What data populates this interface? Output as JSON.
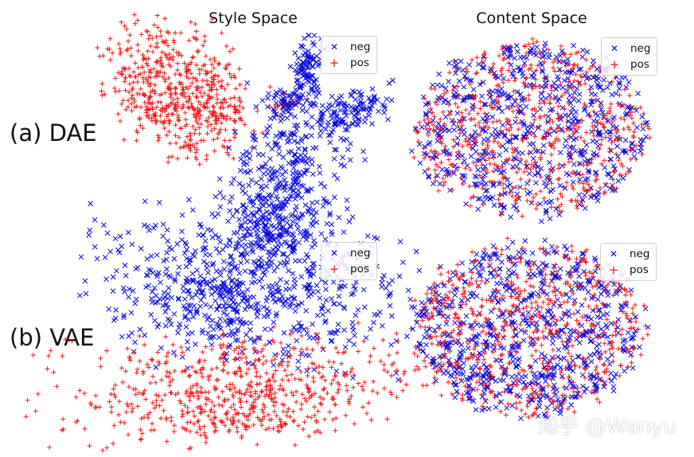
{
  "columns": {
    "style_title": "Style Space",
    "content_title": "Content Space"
  },
  "rows": {
    "dae_label": "(a) DAE",
    "vae_label": "(b) VAE"
  },
  "watermark": "知乎 @Wanyu",
  "colors": {
    "neg": "#0000dd",
    "pos": "#ee1111"
  },
  "chart_data": [
    {
      "type": "scatter",
      "model": "DAE",
      "space": "Style Space",
      "legend": [
        {
          "name": "neg",
          "marker": "x"
        },
        {
          "name": "pos",
          "marker": "+"
        }
      ],
      "legend_position": "top-right",
      "axes": "off",
      "note": "t-SNE projection; points shown as well-separated clusters per class"
    },
    {
      "type": "scatter",
      "model": "DAE",
      "space": "Content Space",
      "legend": [
        {
          "name": "neg",
          "marker": "x"
        },
        {
          "name": "pos",
          "marker": "+"
        }
      ],
      "legend_position": "top-right",
      "axes": "off",
      "note": "t-SNE projection; classes fully intermixed in one elliptical cloud"
    },
    {
      "type": "scatter",
      "model": "VAE",
      "space": "Style Space",
      "legend": [
        {
          "name": "neg",
          "marker": "x"
        },
        {
          "name": "pos",
          "marker": "+"
        }
      ],
      "legend_position": "top-right",
      "axes": "off",
      "note": "t-SNE projection; neg cluster above, pos cluster below"
    },
    {
      "type": "scatter",
      "model": "VAE",
      "space": "Content Space",
      "legend": [
        {
          "name": "neg",
          "marker": "x"
        },
        {
          "name": "pos",
          "marker": "+"
        }
      ],
      "legend_position": "top-right",
      "axes": "off",
      "note": "t-SNE projection; classes fully intermixed in one elliptical cloud"
    }
  ]
}
